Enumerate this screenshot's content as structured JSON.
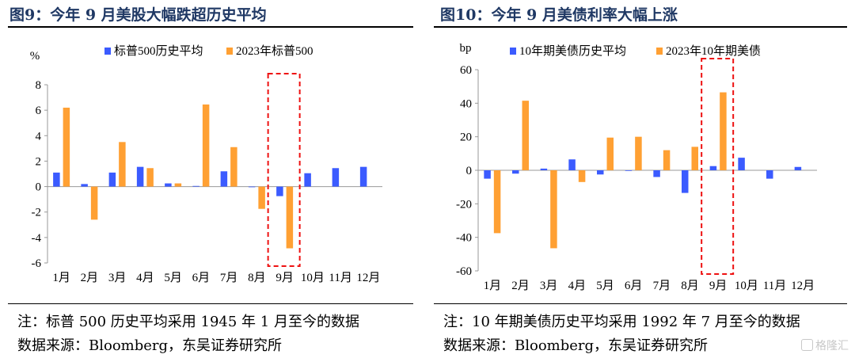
{
  "charts": [
    {
      "title": "图9：今年 9 月美股大幅跌超历史平均",
      "note": "注：标普 500 历史平均采用 1945 年 1 月至今的数据",
      "source": "数据来源：Bloomberg，东吴证券研究所",
      "chart_data": {
        "type": "bar",
        "ylabel": "%",
        "categories": [
          "1月",
          "2月",
          "3月",
          "4月",
          "5月",
          "6月",
          "7月",
          "8月",
          "9月",
          "10月",
          "11月",
          "12月"
        ],
        "ylim": [
          -6,
          8
        ],
        "yticks": [
          8,
          6,
          4,
          2,
          0,
          -2,
          -4,
          -6
        ],
        "legend_position": "top",
        "series": [
          {
            "name": "标普500历史平均",
            "color": "#3b5bff",
            "values": [
              1.1,
              0.2,
              1.1,
              1.55,
              0.25,
              0.05,
              1.2,
              -0.05,
              -0.75,
              1.05,
              1.45,
              1.55
            ]
          },
          {
            "name": "2023年标普500",
            "color": "#ffa033",
            "values": [
              6.2,
              -2.6,
              3.5,
              1.45,
              0.25,
              6.45,
              3.1,
              -1.75,
              -4.85,
              null,
              null,
              null
            ]
          }
        ],
        "highlight_category": "9月"
      }
    },
    {
      "title": "图10：今年 9 月美债利率大幅上涨",
      "note": "注：10 年期美债历史平均采用 1992 年 7 月至今的数据",
      "source": "数据来源：Bloomberg，东吴证券研究所",
      "chart_data": {
        "type": "bar",
        "ylabel": "bp",
        "categories": [
          "1月",
          "2月",
          "3月",
          "4月",
          "5月",
          "6月",
          "7月",
          "8月",
          "9月",
          "10月",
          "11月",
          "12月"
        ],
        "ylim": [
          -60,
          60
        ],
        "yticks": [
          60,
          40,
          20,
          0,
          -20,
          -40,
          -60
        ],
        "legend_position": "top",
        "series": [
          {
            "name": "10年期美债历史平均",
            "color": "#3b5bff",
            "values": [
              -5,
              -2,
              1,
              6.5,
              -2.5,
              0,
              -4,
              -13.5,
              2.5,
              7.5,
              -5,
              2
            ]
          },
          {
            "name": "2023年10年期美债",
            "color": "#ffa033",
            "values": [
              -37.5,
              41.5,
              -46.5,
              -7,
              19.5,
              20,
              12,
              14,
              46.5,
              null,
              null,
              null
            ]
          }
        ],
        "highlight_category": "9月"
      }
    }
  ],
  "watermark": "格隆汇"
}
